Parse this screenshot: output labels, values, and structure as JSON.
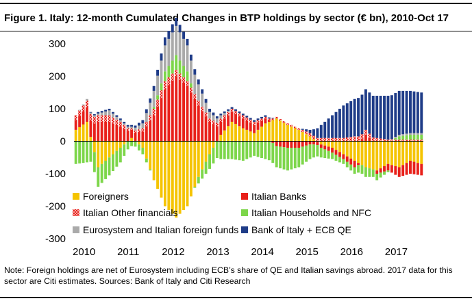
{
  "header": {
    "title": "Figure 1. Italy: 12-month Cumulated Changes in BTP holdings by sector (€ bn), 2010-Oct 17"
  },
  "footer": {
    "note": "Note: Foreign holdings are net of Eurosystem including ECB’s share of QE and Italian savings abroad. 2017 data for this sector are Citi estimates. Sources: Bank of Italy and Citi Research"
  },
  "chart_data": {
    "type": "bar",
    "stacked": true,
    "x_ticks": [
      "2010",
      "2011",
      "2012",
      "2013",
      "2014",
      "2015",
      "2016",
      "2017"
    ],
    "y_ticks": [
      "300",
      "200",
      "100",
      "0",
      "-100",
      "-200",
      "-300"
    ],
    "ylim": [
      -300,
      300
    ],
    "grid": false,
    "legend_position": "lower-left inside plot",
    "series": [
      {
        "name": "Foreigners",
        "color": "#F5C400",
        "points": [
          [
            "2010-01",
            35
          ],
          [
            "2010-04",
            60
          ],
          [
            "2010-07",
            -80
          ],
          [
            "2010-10",
            -50
          ],
          [
            "2011-01",
            -20
          ],
          [
            "2011-04",
            10
          ],
          [
            "2011-07",
            -20
          ],
          [
            "2011-10",
            -120
          ],
          [
            "2012-01",
            -200
          ],
          [
            "2012-04",
            -235
          ],
          [
            "2012-07",
            -200
          ],
          [
            "2012-10",
            -110
          ],
          [
            "2013-01",
            -40
          ],
          [
            "2013-04",
            20
          ],
          [
            "2013-07",
            60
          ],
          [
            "2013-10",
            40
          ],
          [
            "2014-01",
            25
          ],
          [
            "2014-04",
            55
          ],
          [
            "2014-07",
            70
          ],
          [
            "2014-10",
            50
          ],
          [
            "2015-01",
            35
          ],
          [
            "2015-04",
            15
          ],
          [
            "2015-07",
            -10
          ],
          [
            "2015-10",
            -20
          ],
          [
            "2016-01",
            -40
          ],
          [
            "2016-04",
            -60
          ],
          [
            "2016-07",
            -80
          ],
          [
            "2016-10",
            -90
          ],
          [
            "2017-01",
            -70
          ],
          [
            "2017-04",
            -80
          ],
          [
            "2017-07",
            -60
          ],
          [
            "2017-10",
            -70
          ]
        ]
      },
      {
        "name": "Italian Banks",
        "color": "#E8201A",
        "points": [
          [
            "2010-01",
            30
          ],
          [
            "2010-04",
            45
          ],
          [
            "2010-07",
            60
          ],
          [
            "2010-10",
            60
          ],
          [
            "2011-01",
            45
          ],
          [
            "2011-04",
            25
          ],
          [
            "2011-07",
            30
          ],
          [
            "2011-10",
            80
          ],
          [
            "2012-01",
            160
          ],
          [
            "2012-04",
            200
          ],
          [
            "2012-07",
            170
          ],
          [
            "2012-10",
            110
          ],
          [
            "2013-01",
            60
          ],
          [
            "2013-04",
            40
          ],
          [
            "2013-07",
            30
          ],
          [
            "2013-10",
            30
          ],
          [
            "2014-01",
            25
          ],
          [
            "2014-04",
            15
          ],
          [
            "2014-07",
            -15
          ],
          [
            "2014-10",
            -20
          ],
          [
            "2015-01",
            -20
          ],
          [
            "2015-04",
            -10
          ],
          [
            "2015-07",
            -10
          ],
          [
            "2015-10",
            -15
          ],
          [
            "2016-01",
            -15
          ],
          [
            "2016-04",
            -20
          ],
          [
            "2016-07",
            20
          ],
          [
            "2016-10",
            -10
          ],
          [
            "2017-01",
            -20
          ],
          [
            "2017-04",
            -30
          ],
          [
            "2017-07",
            -40
          ],
          [
            "2017-10",
            -35
          ]
        ]
      },
      {
        "name": "Italian Other financials",
        "color": "#E8201A",
        "points": [
          [
            "2010-01",
            15
          ],
          [
            "2010-04",
            20
          ],
          [
            "2010-07",
            20
          ],
          [
            "2010-10",
            20
          ],
          [
            "2011-01",
            15
          ],
          [
            "2011-04",
            5
          ],
          [
            "2011-07",
            10
          ],
          [
            "2011-10",
            20
          ],
          [
            "2012-01",
            25
          ],
          [
            "2012-04",
            20
          ],
          [
            "2012-07",
            15
          ],
          [
            "2012-10",
            15
          ],
          [
            "2013-01",
            10
          ],
          [
            "2013-04",
            10
          ],
          [
            "2013-07",
            10
          ],
          [
            "2013-10",
            10
          ],
          [
            "2014-01",
            10
          ],
          [
            "2014-04",
            5
          ],
          [
            "2014-07",
            5
          ],
          [
            "2014-10",
            5
          ],
          [
            "2015-01",
            5
          ],
          [
            "2015-04",
            10
          ],
          [
            "2015-07",
            10
          ],
          [
            "2015-10",
            10
          ],
          [
            "2016-01",
            10
          ],
          [
            "2016-04",
            15
          ],
          [
            "2016-07",
            15
          ],
          [
            "2016-10",
            10
          ],
          [
            "2017-01",
            5
          ],
          [
            "2017-04",
            5
          ],
          [
            "2017-07",
            5
          ],
          [
            "2017-10",
            5
          ]
        ]
      },
      {
        "name": "Italian Households and NFC",
        "color": "#7DD64A",
        "points": [
          [
            "2010-01",
            -70
          ],
          [
            "2010-04",
            -65
          ],
          [
            "2010-07",
            -60
          ],
          [
            "2010-10",
            -55
          ],
          [
            "2011-01",
            -45
          ],
          [
            "2011-04",
            -15
          ],
          [
            "2011-07",
            -20
          ],
          [
            "2011-10",
            5
          ],
          [
            "2012-01",
            30
          ],
          [
            "2012-04",
            45
          ],
          [
            "2012-07",
            30
          ],
          [
            "2012-10",
            -20
          ],
          [
            "2013-01",
            -45
          ],
          [
            "2013-04",
            -55
          ],
          [
            "2013-07",
            -55
          ],
          [
            "2013-10",
            -60
          ],
          [
            "2014-01",
            -45
          ],
          [
            "2014-04",
            -55
          ],
          [
            "2014-07",
            -65
          ],
          [
            "2014-10",
            -70
          ],
          [
            "2015-01",
            -60
          ],
          [
            "2015-04",
            -45
          ],
          [
            "2015-07",
            -30
          ],
          [
            "2015-10",
            -20
          ],
          [
            "2016-01",
            -15
          ],
          [
            "2016-04",
            -20
          ],
          [
            "2016-07",
            -30
          ],
          [
            "2016-10",
            -20
          ],
          [
            "2017-01",
            -5
          ],
          [
            "2017-04",
            10
          ],
          [
            "2017-07",
            15
          ],
          [
            "2017-10",
            15
          ]
        ]
      },
      {
        "name": "Eurosystem and Italian foreign funds",
        "color": "#AAAAAA",
        "points": [
          [
            "2010-01",
            0
          ],
          [
            "2010-04",
            5
          ],
          [
            "2010-07",
            5
          ],
          [
            "2010-10",
            15
          ],
          [
            "2011-01",
            5
          ],
          [
            "2011-04",
            5
          ],
          [
            "2011-07",
            15
          ],
          [
            "2011-10",
            50
          ],
          [
            "2012-01",
            80
          ],
          [
            "2012-04",
            90
          ],
          [
            "2012-07",
            80
          ],
          [
            "2012-10",
            50
          ],
          [
            "2013-01",
            20
          ],
          [
            "2013-04",
            10
          ],
          [
            "2013-07",
            0
          ],
          [
            "2013-10",
            0
          ],
          [
            "2014-01",
            0
          ],
          [
            "2014-04",
            0
          ],
          [
            "2014-07",
            0
          ],
          [
            "2014-10",
            0
          ],
          [
            "2015-01",
            0
          ],
          [
            "2015-04",
            0
          ],
          [
            "2015-07",
            0
          ],
          [
            "2015-10",
            0
          ],
          [
            "2016-01",
            0
          ],
          [
            "2016-04",
            0
          ],
          [
            "2016-07",
            0
          ],
          [
            "2016-10",
            0
          ],
          [
            "2017-01",
            0
          ],
          [
            "2017-04",
            5
          ],
          [
            "2017-07",
            5
          ],
          [
            "2017-10",
            5
          ]
        ]
      },
      {
        "name": "Bank of Italy + ECB QE",
        "color": "#1F3C88",
        "points": [
          [
            "2010-01",
            0
          ],
          [
            "2010-04",
            0
          ],
          [
            "2010-07",
            5
          ],
          [
            "2010-10",
            5
          ],
          [
            "2011-01",
            5
          ],
          [
            "2011-04",
            5
          ],
          [
            "2011-07",
            10
          ],
          [
            "2011-10",
            15
          ],
          [
            "2012-01",
            25
          ],
          [
            "2012-04",
            25
          ],
          [
            "2012-07",
            20
          ],
          [
            "2012-10",
            15
          ],
          [
            "2013-01",
            10
          ],
          [
            "2013-04",
            5
          ],
          [
            "2013-07",
            5
          ],
          [
            "2013-10",
            5
          ],
          [
            "2014-01",
            5
          ],
          [
            "2014-04",
            5
          ],
          [
            "2014-07",
            0
          ],
          [
            "2014-10",
            0
          ],
          [
            "2015-01",
            0
          ],
          [
            "2015-04",
            10
          ],
          [
            "2015-07",
            40
          ],
          [
            "2015-10",
            70
          ],
          [
            "2016-01",
            100
          ],
          [
            "2016-04",
            115
          ],
          [
            "2016-07",
            125
          ],
          [
            "2016-10",
            130
          ],
          [
            "2017-01",
            135
          ],
          [
            "2017-04",
            135
          ],
          [
            "2017-07",
            130
          ],
          [
            "2017-10",
            125
          ]
        ]
      }
    ]
  }
}
